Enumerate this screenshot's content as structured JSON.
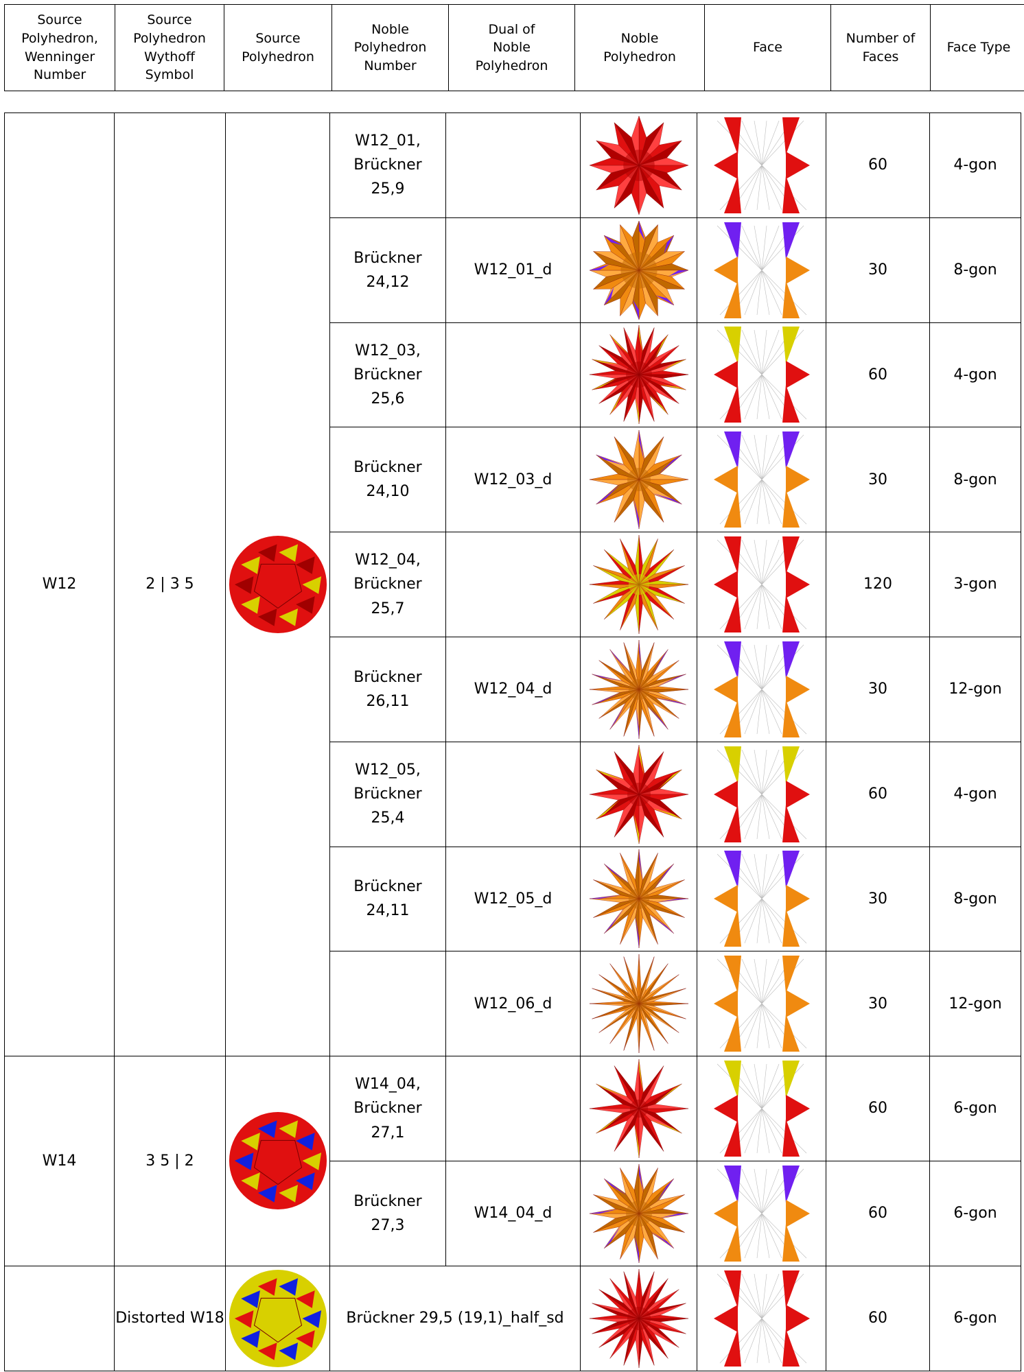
{
  "header": [
    "Source Polyhedron, Wenninger Number",
    "Source Polyhedron Wythoff Symbol",
    "Source Polyhedron",
    "Noble Polyhedron Number",
    "Dual of Noble Polyhedron",
    "Noble Polyhedron",
    "Face",
    "Number of Faces",
    "Face Type"
  ],
  "groups": [
    {
      "wenninger": "W12",
      "wythoff": "2 | 3 5",
      "rows": [
        {
          "noble": "W12_01, Brückner 25,9",
          "faces": 60,
          "face_type": "4-gon"
        },
        {
          "noble": "Brückner 24,12",
          "dual": "W12_01_d",
          "faces": 30,
          "face_type": "8-gon"
        },
        {
          "noble": "W12_03, Brückner 25,6",
          "faces": 60,
          "face_type": "4-gon"
        },
        {
          "noble": "Brückner 24,10",
          "dual": "W12_03_d",
          "faces": 30,
          "face_type": "8-gon"
        },
        {
          "noble": "W12_04, Brückner 25,7",
          "faces": 120,
          "face_type": "3-gon"
        },
        {
          "noble": "Brückner 26,11",
          "dual": "W12_04_d",
          "faces": 30,
          "face_type": "12-gon"
        },
        {
          "noble": "W12_05, Brückner 25,4",
          "faces": 60,
          "face_type": "4-gon"
        },
        {
          "noble": "Brückner 24,11",
          "dual": "W12_05_d",
          "faces": 30,
          "face_type": "8-gon"
        },
        {
          "dual": "W12_06_d",
          "faces": 30,
          "face_type": "12-gon"
        }
      ]
    },
    {
      "wenninger": "W14",
      "wythoff": "3 5 | 2",
      "rows": [
        {
          "noble": "W14_04, Brückner 27,1",
          "faces": 60,
          "face_type": "6-gon"
        },
        {
          "noble": "Brückner 27,3",
          "dual": "W14_04_d",
          "faces": 60,
          "face_type": "6-gon"
        }
      ]
    },
    {
      "wythoff": "Distorted W18",
      "rows": [
        {
          "noble": "Brückner 29,5 (19,1)_half_sd",
          "faces": 60,
          "face_type": "6-gon"
        }
      ]
    }
  ]
}
